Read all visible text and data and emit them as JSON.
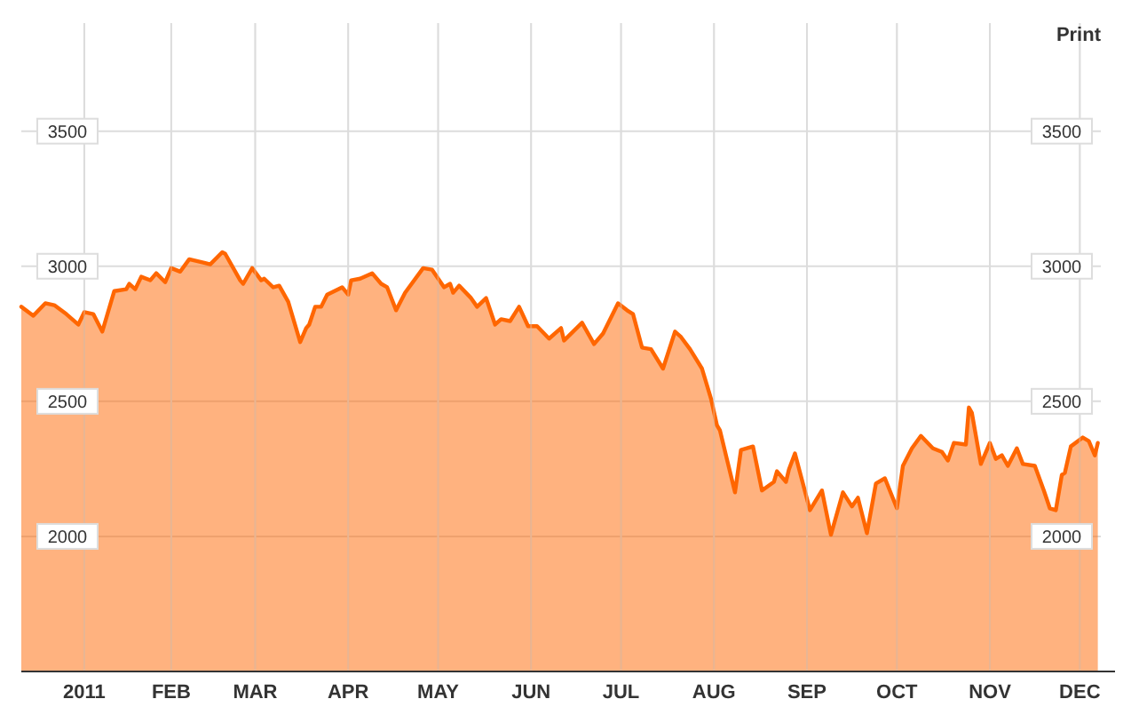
{
  "chart_data": {
    "type": "area",
    "annotations": [
      "Print"
    ],
    "xlim": [
      "2010-12-13",
      "2011-12-08"
    ],
    "xticks": [
      {
        "value": "2011-01-03",
        "label": "2011"
      },
      {
        "value": "2011-02-01",
        "label": "FEB"
      },
      {
        "value": "2011-03-01",
        "label": "MAR"
      },
      {
        "value": "2011-04-01",
        "label": "APR"
      },
      {
        "value": "2011-05-01",
        "label": "MAY"
      },
      {
        "value": "2011-06-01",
        "label": "JUN"
      },
      {
        "value": "2011-07-01",
        "label": "JUL"
      },
      {
        "value": "2011-08-01",
        "label": "AUG"
      },
      {
        "value": "2011-09-01",
        "label": "SEP"
      },
      {
        "value": "2011-10-01",
        "label": "OCT"
      },
      {
        "value": "2011-11-01",
        "label": "NOV"
      },
      {
        "value": "2011-12-01",
        "label": "DEC"
      }
    ],
    "ylim": [
      1500,
      3900
    ],
    "yticks": [
      2000,
      2500,
      3000,
      3500
    ],
    "y2lim": [
      1500,
      3900
    ],
    "y2ticks": [
      2000,
      2500,
      3000,
      3500
    ],
    "grid": true,
    "series": [
      {
        "color": "#ff6600",
        "x": [
          "2010-12-13",
          "2010-12-17",
          "2010-12-21",
          "2010-12-24",
          "2010-12-28",
          "2011-01-01",
          "2011-01-03",
          "2011-01-06",
          "2011-01-09",
          "2011-01-13",
          "2011-01-17",
          "2011-01-18",
          "2011-01-20",
          "2011-01-22",
          "2011-01-25",
          "2011-01-27",
          "2011-01-30",
          "2011-02-01",
          "2011-02-04",
          "2011-02-07",
          "2011-02-12",
          "2011-02-14",
          "2011-02-18",
          "2011-02-19",
          "2011-02-24",
          "2011-02-25",
          "2011-02-28",
          "2011-03-03",
          "2011-03-04",
          "2011-03-07",
          "2011-03-09",
          "2011-03-12",
          "2011-03-16",
          "2011-03-18",
          "2011-03-19",
          "2011-03-21",
          "2011-03-23",
          "2011-03-25",
          "2011-03-30",
          "2011-04-01",
          "2011-04-02",
          "2011-04-05",
          "2011-04-09",
          "2011-04-12",
          "2011-04-14",
          "2011-04-17",
          "2011-04-20",
          "2011-04-26",
          "2011-04-29",
          "2011-05-03",
          "2011-05-05",
          "2011-05-06",
          "2011-05-08",
          "2011-05-12",
          "2011-05-14",
          "2011-05-17",
          "2011-05-20",
          "2011-05-22",
          "2011-05-25",
          "2011-05-28",
          "2011-05-31",
          "2011-06-03",
          "2011-06-07",
          "2011-06-11",
          "2011-06-12",
          "2011-06-15",
          "2011-06-18",
          "2011-06-22",
          "2011-06-25",
          "2011-06-30",
          "2011-07-03",
          "2011-07-05",
          "2011-07-08",
          "2011-07-11",
          "2011-07-15",
          "2011-07-19",
          "2011-07-21",
          "2011-07-24",
          "2011-07-28",
          "2011-07-31",
          "2011-08-02",
          "2011-08-03",
          "2011-08-05",
          "2011-08-08",
          "2011-08-10",
          "2011-08-14",
          "2011-08-17",
          "2011-08-21",
          "2011-08-22",
          "2011-08-25",
          "2011-08-26",
          "2011-08-28",
          "2011-09-02",
          "2011-09-06",
          "2011-09-09",
          "2011-09-13",
          "2011-09-16",
          "2011-09-18",
          "2011-09-21",
          "2011-09-24",
          "2011-09-27",
          "2011-10-01",
          "2011-10-03",
          "2011-10-06",
          "2011-10-09",
          "2011-10-13",
          "2011-10-16",
          "2011-10-18",
          "2011-10-20",
          "2011-10-24",
          "2011-10-25",
          "2011-10-26",
          "2011-10-29",
          "2011-11-01",
          "2011-11-03",
          "2011-11-05",
          "2011-11-07",
          "2011-11-10",
          "2011-11-12",
          "2011-11-16",
          "2011-11-19",
          "2011-11-21",
          "2011-11-23",
          "2011-11-25",
          "2011-11-26",
          "2011-11-28",
          "2011-12-02",
          "2011-12-04",
          "2011-12-06",
          "2011-12-07"
        ],
        "values": [
          2850,
          2817,
          2863,
          2856,
          2823,
          2784,
          2830,
          2823,
          2758,
          2908,
          2915,
          2935,
          2915,
          2961,
          2948,
          2974,
          2941,
          2993,
          2980,
          3026,
          3013,
          3007,
          3052,
          3046,
          2948,
          2935,
          2993,
          2948,
          2954,
          2922,
          2928,
          2869,
          2719,
          2771,
          2784,
          2850,
          2850,
          2895,
          2922,
          2895,
          2948,
          2954,
          2974,
          2935,
          2922,
          2837,
          2902,
          2993,
          2987,
          2922,
          2935,
          2902,
          2928,
          2882,
          2850,
          2882,
          2784,
          2804,
          2797,
          2850,
          2778,
          2778,
          2732,
          2771,
          2725,
          2758,
          2791,
          2712,
          2751,
          2863,
          2837,
          2823,
          2699,
          2693,
          2621,
          2758,
          2738,
          2693,
          2621,
          2510,
          2411,
          2392,
          2300,
          2163,
          2320,
          2333,
          2170,
          2202,
          2241,
          2202,
          2248,
          2307,
          2097,
          2170,
          2006,
          2163,
          2111,
          2143,
          2012,
          2196,
          2215,
          2104,
          2261,
          2326,
          2372,
          2326,
          2313,
          2281,
          2346,
          2340,
          2477,
          2457,
          2268,
          2346,
          2287,
          2300,
          2261,
          2326,
          2268,
          2261,
          2170,
          2104,
          2097,
          2228,
          2235,
          2333,
          2366,
          2353,
          2300,
          2346
        ]
      }
    ]
  }
}
